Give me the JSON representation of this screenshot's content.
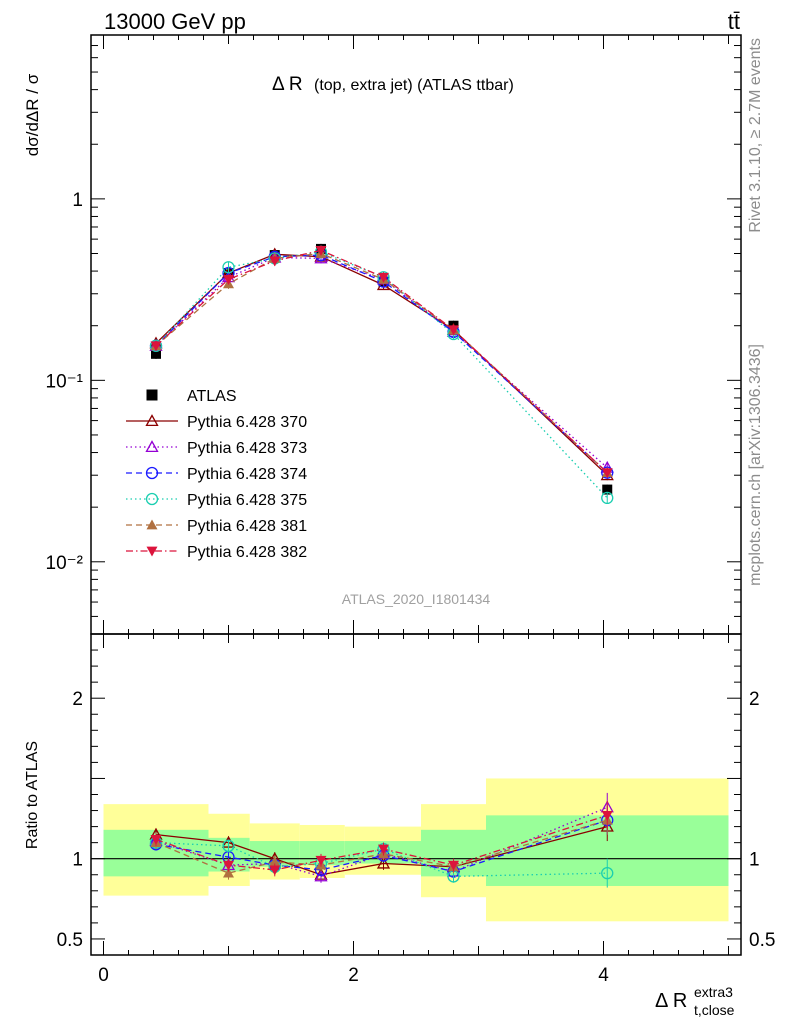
{
  "header": {
    "energy_label": "13000 GeV pp",
    "process_label": "tt̄"
  },
  "side": {
    "rivet_label": "Rivet 3.1.10, ≥ 2.7M events",
    "mcplots_label": "mcplots.cern.ch [arXiv:1306.3436]"
  },
  "plot": {
    "title_main": "Δ R",
    "title_sub": "(top, extra jet) (ATLAS ttbar)",
    "analysis_id": "ATLAS_2020_I1801434",
    "ylabel_main": "dσ/dΔR / σ",
    "ratio_ylabel": "Ratio to ATLAS",
    "xlabel_main": "Δ R",
    "xlabel_sub": "t,close",
    "xlabel_sup": "extra3"
  },
  "colors": {
    "band_inner": "#99ff99",
    "band_outer": "#ffff99",
    "data": "#000000",
    "s370": "#8b0000",
    "s373": "#9400d3",
    "s374": "#1a1aff",
    "s375": "#1aceb0",
    "s381": "#b07040",
    "s382": "#dc143c"
  },
  "chart_data": [
    {
      "type": "line",
      "yscale": "log",
      "xlim": [
        -0.1,
        5.1
      ],
      "ylim": [
        0.004,
        8
      ],
      "x_ticks": [
        0,
        2,
        4
      ],
      "y_ticks": [
        {
          "value": 1,
          "label": "1"
        },
        {
          "value": 0.1,
          "label": "10⁻¹"
        },
        {
          "value": 0.01,
          "label": "10⁻²"
        }
      ],
      "x": [
        0.42,
        1.0,
        1.37,
        1.74,
        2.24,
        2.8,
        4.03
      ],
      "bins": [
        [
          0,
          0.84
        ],
        [
          0.84,
          1.17
        ],
        [
          1.17,
          1.57
        ],
        [
          1.57,
          1.93
        ],
        [
          1.93,
          2.54
        ],
        [
          2.54,
          3.06
        ],
        [
          3.06,
          5.0
        ]
      ],
      "legend_position": "middle-left",
      "series": [
        {
          "name": "ATLAS",
          "key": "data",
          "marker": "square",
          "line": "none",
          "values": [
            0.14,
            0.39,
            0.49,
            0.53,
            0.35,
            0.2,
            0.025
          ]
        },
        {
          "name": "Pythia 6.428 370",
          "key": "s370",
          "marker": "triangle-up-open",
          "line": "solid",
          "values": [
            0.16,
            0.39,
            0.495,
            0.48,
            0.335,
            0.19,
            0.03
          ]
        },
        {
          "name": "Pythia 6.428 373",
          "key": "s373",
          "marker": "triangle-up-open",
          "line": "dotted",
          "values": [
            0.155,
            0.37,
            0.475,
            0.47,
            0.36,
            0.185,
            0.033
          ]
        },
        {
          "name": "Pythia 6.428 374",
          "key": "s374",
          "marker": "circle-open",
          "line": "dashed",
          "values": [
            0.155,
            0.39,
            0.48,
            0.49,
            0.35,
            0.185,
            0.031
          ]
        },
        {
          "name": "Pythia 6.428 375",
          "key": "s375",
          "marker": "circle-open",
          "line": "dotted",
          "values": [
            0.155,
            0.42,
            0.47,
            0.51,
            0.37,
            0.18,
            0.0225
          ]
        },
        {
          "name": "Pythia 6.428 381",
          "key": "s381",
          "marker": "triangle-up-filled",
          "line": "dashed",
          "values": [
            0.155,
            0.34,
            0.47,
            0.5,
            0.36,
            0.19,
            0.031
          ]
        },
        {
          "name": "Pythia 6.428 382",
          "key": "s382",
          "marker": "triangle-down-filled",
          "line": "dashdot",
          "values": [
            0.155,
            0.36,
            0.455,
            0.52,
            0.37,
            0.19,
            0.031
          ]
        }
      ]
    },
    {
      "type": "line",
      "ylabel": "Ratio to ATLAS",
      "xlim": [
        -0.1,
        5.1
      ],
      "ylim": [
        0.4,
        2.4
      ],
      "x_ticks": [
        0,
        2,
        4
      ],
      "y_ticks": [
        0.5,
        1,
        2
      ],
      "x": [
        0.42,
        1.0,
        1.37,
        1.74,
        2.24,
        2.8,
        4.03
      ],
      "bands": [
        {
          "xmin": 0,
          "xmax": 0.84,
          "inner": [
            0.89,
            1.18
          ],
          "outer": [
            0.77,
            1.34
          ]
        },
        {
          "xmin": 0.84,
          "xmax": 1.17,
          "inner": [
            0.92,
            1.13
          ],
          "outer": [
            0.83,
            1.28
          ]
        },
        {
          "xmin": 1.17,
          "xmax": 1.57,
          "inner": [
            0.95,
            1.11
          ],
          "outer": [
            0.87,
            1.22
          ]
        },
        {
          "xmin": 1.57,
          "xmax": 1.93,
          "inner": [
            0.96,
            1.11
          ],
          "outer": [
            0.88,
            1.21
          ]
        },
        {
          "xmin": 1.93,
          "xmax": 2.54,
          "inner": [
            0.97,
            1.11
          ],
          "outer": [
            0.9,
            1.2
          ]
        },
        {
          "xmin": 2.54,
          "xmax": 3.06,
          "inner": [
            0.89,
            1.18
          ],
          "outer": [
            0.76,
            1.34
          ]
        },
        {
          "xmin": 3.06,
          "xmax": 5.0,
          "inner": [
            0.83,
            1.27
          ],
          "outer": [
            0.61,
            1.5
          ]
        }
      ],
      "series": [
        {
          "name": "Pythia 6.428 370",
          "key": "s370",
          "marker": "triangle-up-open",
          "line": "solid",
          "values": [
            1.15,
            1.1,
            1.0,
            0.9,
            0.97,
            0.95,
            1.2
          ]
        },
        {
          "name": "Pythia 6.428 373",
          "key": "s373",
          "marker": "triangle-up-open",
          "line": "dotted",
          "values": [
            1.11,
            0.96,
            0.97,
            0.89,
            1.03,
            0.92,
            1.32
          ]
        },
        {
          "name": "Pythia 6.428 374",
          "key": "s374",
          "marker": "circle-open",
          "line": "dashed",
          "values": [
            1.09,
            1.01,
            0.96,
            0.93,
            1.02,
            0.92,
            1.24
          ]
        },
        {
          "name": "Pythia 6.428 375",
          "key": "s375",
          "marker": "circle-open",
          "line": "dotted",
          "values": [
            1.1,
            1.08,
            0.95,
            0.97,
            1.06,
            0.89,
            0.91
          ]
        },
        {
          "name": "Pythia 6.428 381",
          "key": "s381",
          "marker": "triangle-up-filled",
          "line": "dashed",
          "values": [
            1.1,
            0.91,
            0.98,
            0.96,
            1.03,
            0.95,
            1.24
          ]
        },
        {
          "name": "Pythia 6.428 382",
          "key": "s382",
          "marker": "triangle-down-filled",
          "line": "dashdot",
          "values": [
            1.12,
            0.96,
            0.93,
            0.99,
            1.06,
            0.96,
            1.27
          ]
        }
      ]
    }
  ]
}
